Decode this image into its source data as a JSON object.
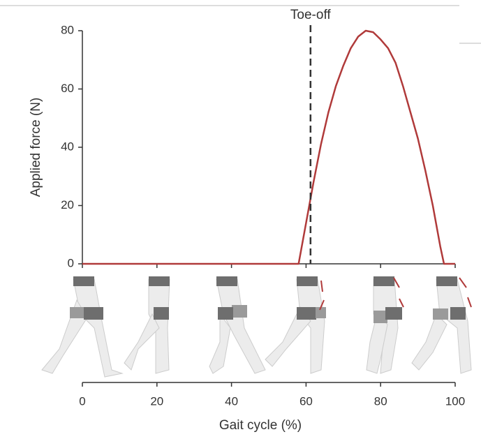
{
  "chart_data": {
    "type": "line",
    "x": [
      0,
      58,
      60,
      62,
      64,
      66,
      68,
      70,
      72,
      74,
      76,
      78,
      80,
      82,
      84,
      86,
      88,
      90,
      92,
      94,
      96,
      97,
      100
    ],
    "values": [
      0,
      0,
      14,
      28,
      41,
      52,
      61,
      68,
      74,
      78,
      80,
      79.5,
      77,
      74,
      69,
      61,
      52,
      43,
      32,
      20,
      6,
      0,
      0
    ],
    "color": "#b03a3a",
    "xlim": [
      0,
      100
    ],
    "xticks": [
      0,
      20,
      40,
      60,
      80,
      100
    ],
    "ylim": [
      0,
      80
    ],
    "yticks": [
      0,
      20,
      40,
      60,
      80
    ],
    "xlabel": "Gait cycle (%)",
    "ylabel": "Applied force (N)",
    "annotations": [
      {
        "text": "Toe-off",
        "x": 61.2
      }
    ]
  }
}
